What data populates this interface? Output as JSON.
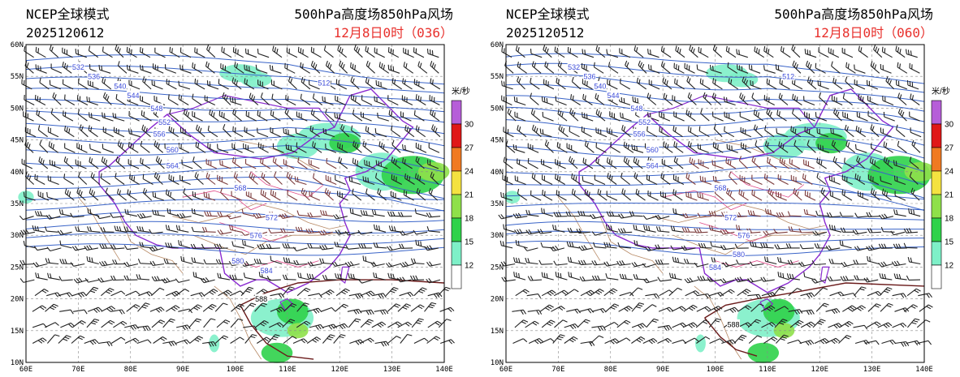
{
  "panels": [
    {
      "model": "NCEP全球模式",
      "run_date": "2025120612",
      "product": "500hPa高度场850hPa风场",
      "valid_time": "12月8日0时（036）",
      "contours": [
        {
          "label": "532",
          "lon": 70,
          "lat": 56.5
        },
        {
          "label": "536",
          "lon": 73,
          "lat": 55
        },
        {
          "label": "540",
          "lon": 78,
          "lat": 53.5
        },
        {
          "label": "544",
          "lon": 80.5,
          "lat": 52
        },
        {
          "label": "548",
          "lon": 85,
          "lat": 50
        },
        {
          "label": "552",
          "lon": 86.5,
          "lat": 47.8
        },
        {
          "label": "556",
          "lon": 85.5,
          "lat": 46
        },
        {
          "label": "560",
          "lon": 88,
          "lat": 43.5
        },
        {
          "label": "564",
          "lon": 88,
          "lat": 41
        },
        {
          "label": "568",
          "lon": 101,
          "lat": 37.5
        },
        {
          "label": "572",
          "lon": 107,
          "lat": 32.8
        },
        {
          "label": "576",
          "lon": 104,
          "lat": 30
        },
        {
          "label": "580",
          "lon": 100.5,
          "lat": 26
        },
        {
          "label": "584",
          "lon": 106,
          "lat": 24.5
        },
        {
          "label": "588",
          "lon": 105,
          "lat": 20
        },
        {
          "label": "512",
          "lon": 117,
          "lat": 54
        }
      ]
    },
    {
      "model": "NCEP全球模式",
      "run_date": "2025120512",
      "product": "500hPa高度场850hPa风场",
      "valid_time": "12月8日0时（060）",
      "contours": [
        {
          "label": "532",
          "lon": 73,
          "lat": 56.5
        },
        {
          "label": "536",
          "lon": 76,
          "lat": 55
        },
        {
          "label": "540",
          "lon": 78,
          "lat": 53.5
        },
        {
          "label": "544",
          "lon": 80.5,
          "lat": 52
        },
        {
          "label": "548",
          "lon": 85,
          "lat": 50
        },
        {
          "label": "552",
          "lon": 86.5,
          "lat": 47.8
        },
        {
          "label": "556",
          "lon": 85.5,
          "lat": 46
        },
        {
          "label": "560",
          "lon": 88,
          "lat": 43.5
        },
        {
          "label": "564",
          "lon": 88,
          "lat": 41
        },
        {
          "label": "568",
          "lon": 101,
          "lat": 37.5
        },
        {
          "label": "572",
          "lon": 103,
          "lat": 32.8
        },
        {
          "label": "576",
          "lon": 105.5,
          "lat": 30
        },
        {
          "label": "580",
          "lon": 104.5,
          "lat": 27
        },
        {
          "label": "584",
          "lon": 100,
          "lat": 25
        },
        {
          "label": "588",
          "lon": 103.5,
          "lat": 16
        },
        {
          "label": "512",
          "lon": 114,
          "lat": 55
        }
      ]
    }
  ],
  "map": {
    "lon_range": [
      60,
      140
    ],
    "lat_range": [
      10,
      60
    ],
    "lon_ticks": [
      "60E",
      "70E",
      "80E",
      "90E",
      "100E",
      "110E",
      "120E",
      "130E",
      "140E"
    ],
    "lat_ticks": [
      "60N",
      "55N",
      "50N",
      "45N",
      "40N",
      "35N",
      "30N",
      "25N",
      "20N",
      "15N",
      "10N"
    ]
  },
  "colorbar": {
    "unit": "米/秒",
    "levels": [
      "30",
      "27",
      "24",
      "21",
      "18",
      "15",
      "12"
    ],
    "colors": [
      "#b65ed8",
      "#e01818",
      "#f07a22",
      "#f4e240",
      "#8fe04a",
      "#2fd24a",
      "#7ef0c8",
      "#ffffff"
    ]
  },
  "colors": {
    "height_contour": "#3a64c8",
    "label": "#3a4ad8",
    "border_country": "#8a2ad0",
    "border_province": "#e04888",
    "river": "#b88a66",
    "jet": [
      "#7ef0c8",
      "#2fd24a",
      "#8fe04a",
      "#f4e240",
      "#f07a22"
    ]
  }
}
